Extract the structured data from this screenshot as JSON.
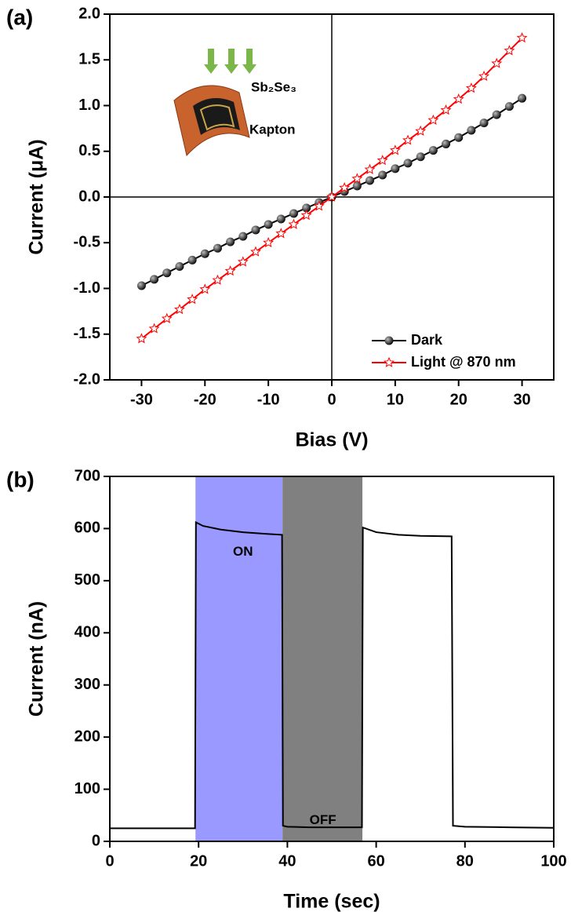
{
  "chart_data": [
    {
      "type": "line",
      "panel_label": "(a)",
      "x_label": "Bias (V)",
      "y_label": "Current (μA)",
      "x": [
        -30,
        -28,
        -26,
        -24,
        -22,
        -20,
        -18,
        -16,
        -14,
        -12,
        -10,
        -8,
        -6,
        -4,
        -2,
        0,
        2,
        4,
        6,
        8,
        10,
        12,
        14,
        16,
        18,
        20,
        22,
        24,
        26,
        28,
        30
      ],
      "series": [
        {
          "name": "Dark",
          "color": "#000000",
          "marker": "circle",
          "values": [
            -0.97,
            -0.9,
            -0.83,
            -0.76,
            -0.69,
            -0.62,
            -0.56,
            -0.49,
            -0.43,
            -0.36,
            -0.3,
            -0.24,
            -0.18,
            -0.12,
            -0.06,
            0,
            0.06,
            0.12,
            0.18,
            0.24,
            0.31,
            0.37,
            0.44,
            0.51,
            0.58,
            0.65,
            0.73,
            0.81,
            0.9,
            0.99,
            1.08
          ]
        },
        {
          "name": "Light @ 870 nm",
          "color": "#ff0000",
          "marker": "star",
          "values": [
            -1.55,
            -1.44,
            -1.33,
            -1.23,
            -1.12,
            -1.01,
            -0.91,
            -0.81,
            -0.71,
            -0.6,
            -0.5,
            -0.4,
            -0.3,
            -0.2,
            -0.1,
            0,
            0.1,
            0.2,
            0.3,
            0.4,
            0.51,
            0.62,
            0.72,
            0.84,
            0.95,
            1.07,
            1.19,
            1.32,
            1.46,
            1.6,
            1.74
          ]
        }
      ],
      "xlim": [
        -35,
        35
      ],
      "xticks": [
        -30,
        -20,
        -10,
        0,
        10,
        20,
        30
      ],
      "ylim": [
        -2,
        2
      ],
      "yticks": [
        {
          "value": -2,
          "label": "-2.0"
        },
        -1.5,
        {
          "value": -1,
          "label": "-1.0"
        },
        -0.5,
        {
          "value": 0,
          "label": "0.0"
        },
        0.5,
        {
          "value": 1,
          "label": "1.0"
        },
        1.5,
        {
          "value": 2,
          "label": "2.0"
        }
      ],
      "zero_lines": true,
      "legend": "lower-right",
      "inset_labels": [
        "Sb₂Se₃",
        "Kapton"
      ]
    },
    {
      "type": "line",
      "panel_label": "(b)",
      "x_label": "Time (sec)",
      "y_label": "Current (nA)",
      "x": [
        0,
        19.2,
        19.4,
        21,
        25,
        30,
        35,
        38.8,
        39,
        40,
        45,
        50,
        56.8,
        57,
        60,
        65,
        70,
        77,
        77.3,
        80,
        90,
        100
      ],
      "series": [
        {
          "color": "#000000",
          "values": [
            25,
            25,
            612,
            605,
            598,
            593,
            590,
            588,
            30,
            28,
            27,
            27,
            27,
            602,
            593,
            588,
            586,
            585,
            30,
            28,
            27,
            26
          ]
        }
      ],
      "spans": [
        {
          "from": 19.3,
          "to": 38.9,
          "color": "#9999ff"
        },
        {
          "from": 38.9,
          "to": 56.9,
          "color": "#808080"
        }
      ],
      "annotations": [
        {
          "text": "ON",
          "x": 30,
          "y": 555
        },
        {
          "text": "OFF",
          "x": 48,
          "y": 40
        }
      ],
      "xlim": [
        0,
        100
      ],
      "xticks": [
        0,
        20,
        40,
        60,
        80,
        100
      ],
      "ylim": [
        0,
        700
      ],
      "yticks": [
        0,
        100,
        200,
        300,
        400,
        500,
        600,
        700
      ]
    }
  ]
}
